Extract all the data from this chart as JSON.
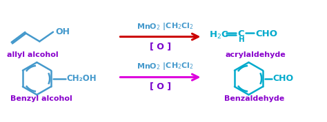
{
  "background_color": "#ffffff",
  "arrow_color_top": "#cc0000",
  "arrow_color_bottom": "#dd00dd",
  "blue_color": "#4499cc",
  "purple_color": "#8800cc",
  "cyan_color": "#00aacc",
  "reagent_color": "#cc0000",
  "oxidant_color": "#7700cc",
  "oxidant": "[ O ]",
  "allyl_label": "allyl alcohol",
  "acryl_label": "acrylaldehyde",
  "benzyl_label": "Benzyl alcohol",
  "benzald_label": "Benzaldehyde",
  "reagent_text": "MnO$_2$ |CH$_2$Cl$_2$"
}
